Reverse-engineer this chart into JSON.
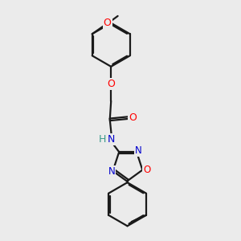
{
  "bg_color": "#ebebeb",
  "bond_color": "#1a1a1a",
  "oxygen_color": "#ff0000",
  "nitrogen_color": "#0000cc",
  "hydrogen_color": "#3a9a8a",
  "line_width": 1.6,
  "dbo": 0.055,
  "figsize": [
    3.0,
    3.0
  ],
  "dpi": 100,
  "xlim": [
    2.0,
    8.5
  ],
  "ylim": [
    0.5,
    10.5
  ]
}
